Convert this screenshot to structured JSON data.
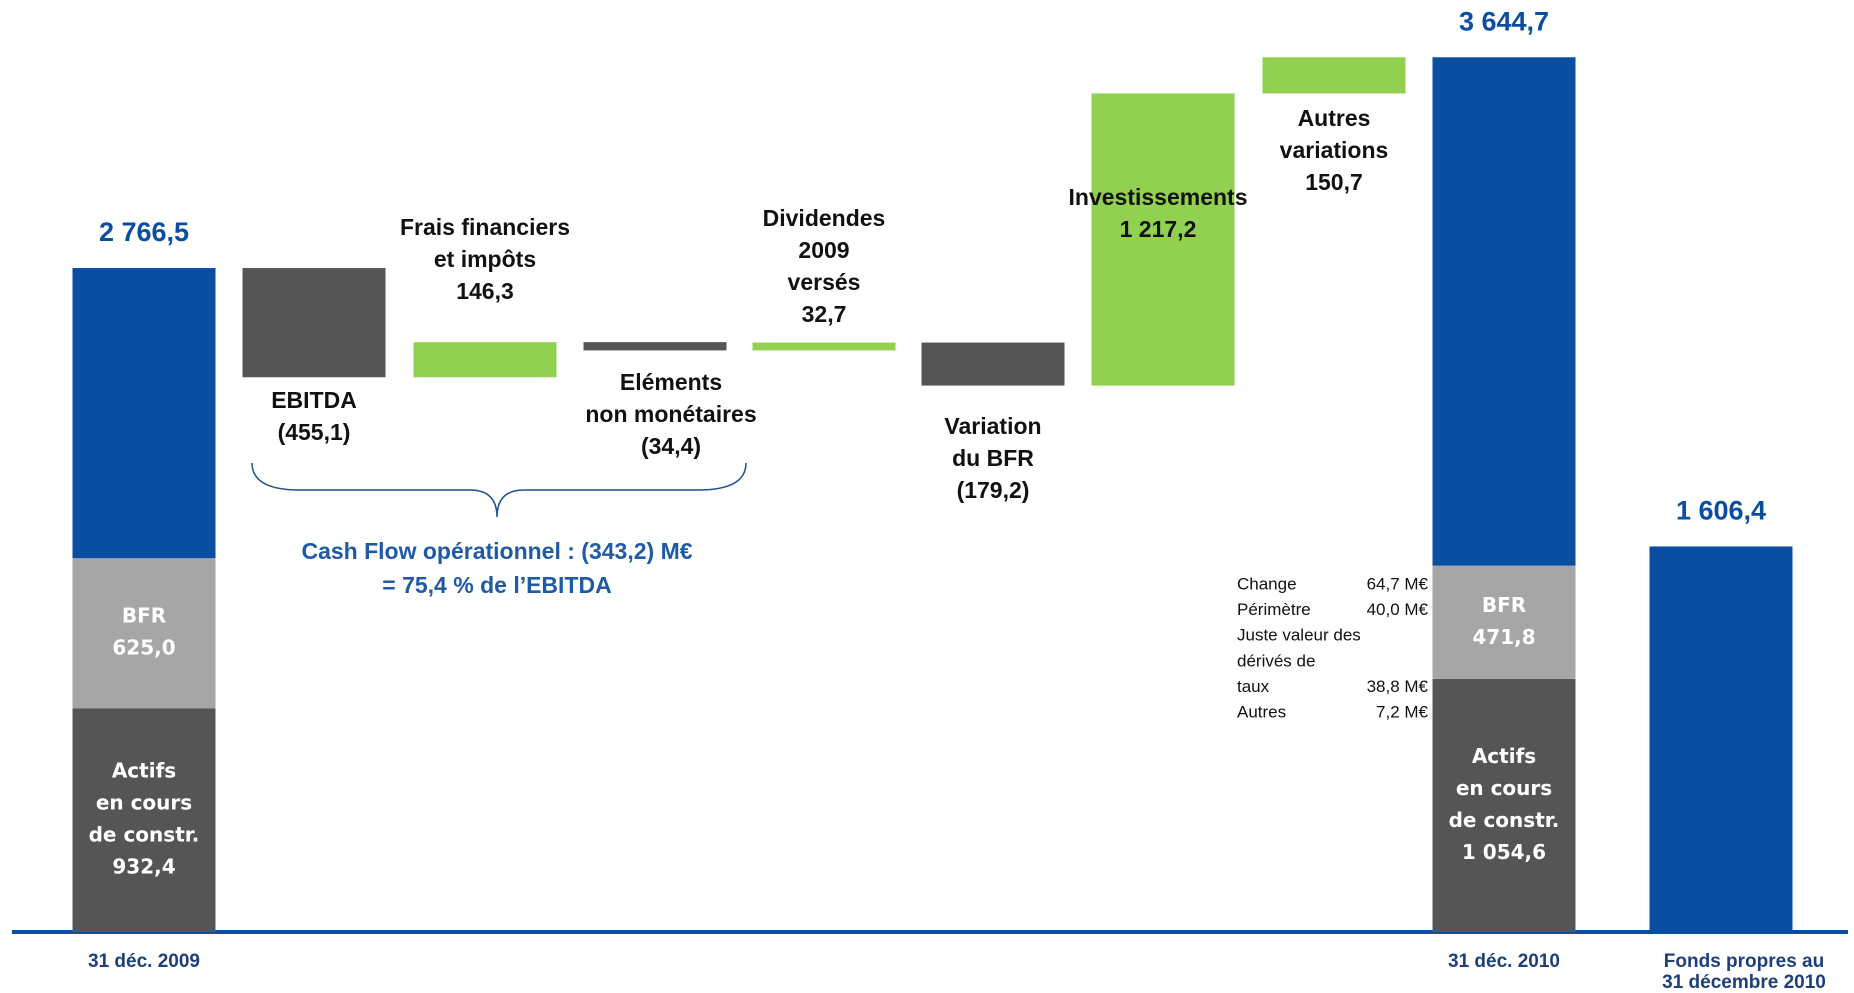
{
  "chart_data": {
    "type": "waterfall",
    "colors": {
      "total": "#0a4ea2",
      "bfr": "#a6a6a6",
      "decrease": "#555555",
      "increase": "#92d050"
    },
    "start": {
      "category": "31 déc. 2009",
      "value": 2766.5,
      "value_label": "2 766,5",
      "parts": [
        {
          "name": [
            "Actifs",
            "en cours",
            "de constr."
          ],
          "value": 932.4,
          "value_label": "932,4"
        },
        {
          "name": [
            "BFR"
          ],
          "value": 625.0,
          "value_label": "625,0"
        }
      ]
    },
    "steps": [
      {
        "name": [
          "EBITDA"
        ],
        "value": -455.1,
        "value_label": "(455,1)"
      },
      {
        "name": [
          "Frais financiers",
          "et impôts"
        ],
        "value": 146.3,
        "value_label": "146,3"
      },
      {
        "name": [
          "Eléments",
          "non monétaires"
        ],
        "value": -34.4,
        "value_label": "(34,4)"
      },
      {
        "name": [
          "Dividendes",
          "2009",
          "versés"
        ],
        "value": 32.7,
        "value_label": "32,7"
      },
      {
        "name": [
          "Variation",
          "du BFR"
        ],
        "value": -179.2,
        "value_label": "(179,2)"
      },
      {
        "name": [
          "Investissements"
        ],
        "value": 1217.2,
        "value_label": "1 217,2"
      },
      {
        "name": [
          "Autres",
          "variations"
        ],
        "value": 150.7,
        "value_label": "150,7"
      }
    ],
    "end": {
      "category": "31 déc. 2010",
      "value": 3644.7,
      "value_label": "3 644,7",
      "parts": [
        {
          "name": [
            "Actifs",
            "en cours",
            "de constr."
          ],
          "value": 1054.6,
          "value_label": "1 054,6"
        },
        {
          "name": [
            "BFR"
          ],
          "value": 471.8,
          "value_label": "471,8"
        }
      ]
    },
    "equity": {
      "category": [
        "Fonds propres au",
        "31 décembre 2010"
      ],
      "value": 1606.4,
      "value_label": "1 606,4"
    },
    "annotation": [
      "Cash Flow opérationnel : (343,2) M€",
      "= 75,4 % de l’EBITDA"
    ],
    "breakdown": [
      {
        "label": [
          "Change"
        ],
        "value": "64,7 M€"
      },
      {
        "label": [
          "Périmètre"
        ],
        "value": "40,0 M€"
      },
      {
        "label": [
          "Juste valeur des",
          "dérivés  de",
          "taux"
        ],
        "value": "38,8 M€"
      },
      {
        "label": [
          "Autres"
        ],
        "value": "7,2 M€"
      }
    ]
  }
}
